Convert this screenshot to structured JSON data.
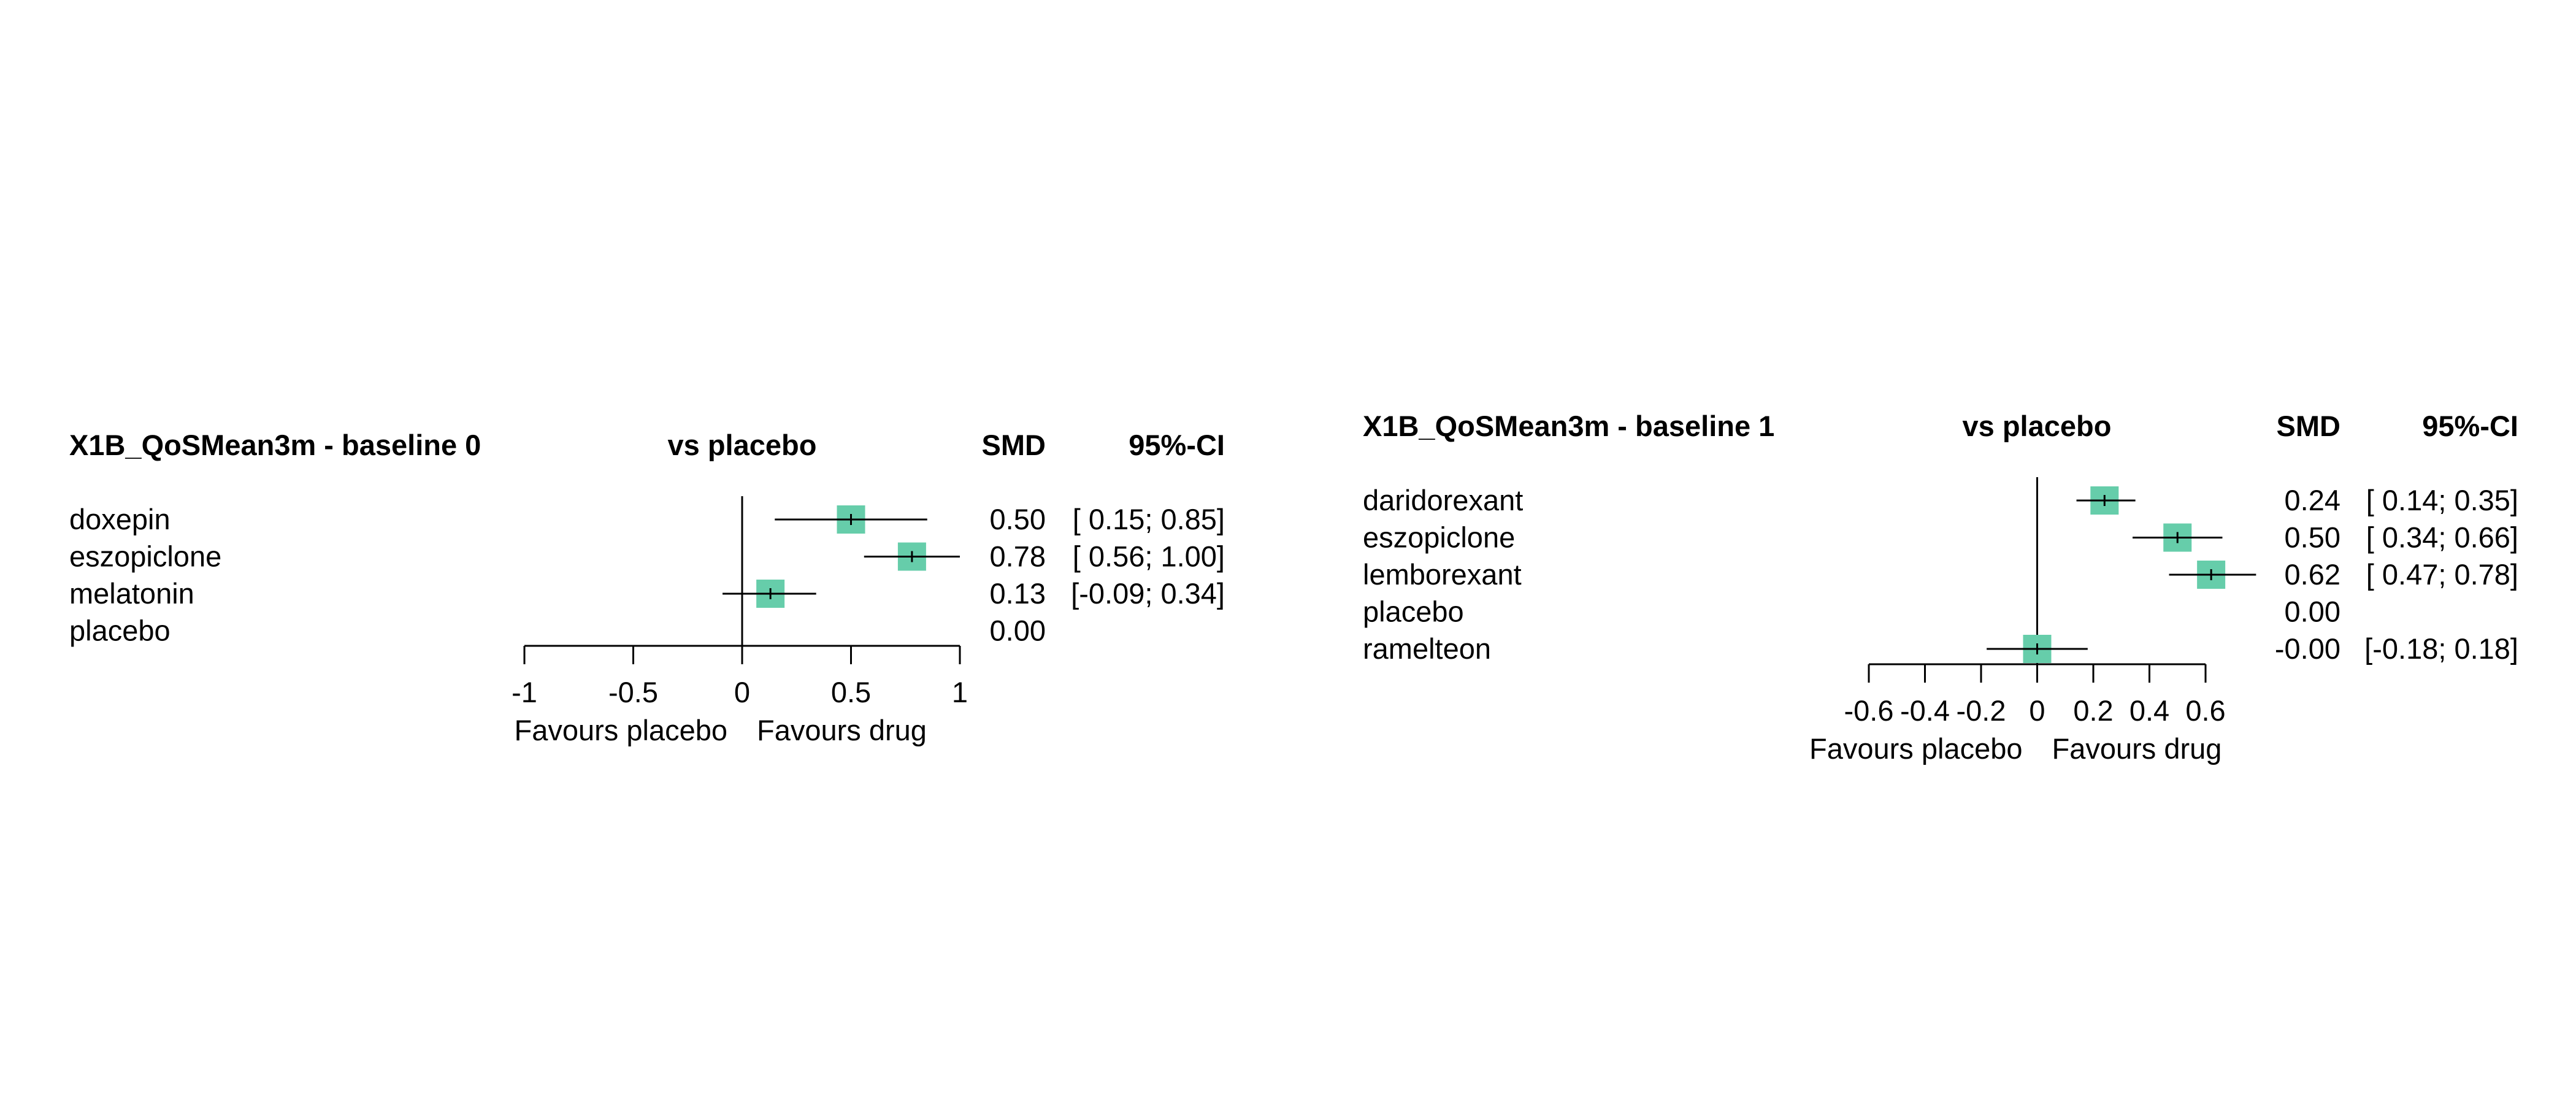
{
  "chart_data": [
    {
      "type": "forest",
      "title": "X1B_QoSMean3m - baseline 0",
      "comparison_label": "vs placebo",
      "estimate_label": "SMD",
      "ci_label": "95%-CI",
      "xlim": [
        -1,
        1
      ],
      "ticks": [
        -1,
        -0.5,
        0,
        0.5,
        1
      ],
      "tick_labels": [
        "-1",
        "-0.5",
        "0",
        "0.5",
        "1"
      ],
      "left_label": "Favours placebo",
      "right_label": "Favours drug",
      "marker_color": "#66cdaa",
      "rows": [
        {
          "treatment": "doxepin",
          "smd": 0.5,
          "lower": 0.15,
          "upper": 0.85,
          "smd_text": "0.50",
          "ci_text": "[ 0.15; 0.85]"
        },
        {
          "treatment": "eszopiclone",
          "smd": 0.78,
          "lower": 0.56,
          "upper": 1.0,
          "smd_text": "0.78",
          "ci_text": "[ 0.56; 1.00]"
        },
        {
          "treatment": "melatonin",
          "smd": 0.13,
          "lower": -0.09,
          "upper": 0.34,
          "smd_text": "0.13",
          "ci_text": "[-0.09; 0.34]"
        },
        {
          "treatment": "placebo",
          "smd": 0.0,
          "lower": null,
          "upper": null,
          "smd_text": "0.00",
          "ci_text": ""
        }
      ]
    },
    {
      "type": "forest",
      "title": "X1B_QoSMean3m - baseline 1",
      "comparison_label": "vs placebo",
      "estimate_label": "SMD",
      "ci_label": "95%-CI",
      "xlim": [
        -0.6,
        0.6
      ],
      "ticks": [
        -0.6,
        -0.4,
        -0.2,
        0,
        0.2,
        0.4,
        0.6
      ],
      "tick_labels": [
        "-0.6",
        "-0.4",
        "-0.2",
        "0",
        "0.2",
        "0.4",
        "0.6"
      ],
      "left_label": "Favours placebo",
      "right_label": "Favours drug",
      "marker_color": "#66cdaa",
      "rows": [
        {
          "treatment": "daridorexant",
          "smd": 0.24,
          "lower": 0.14,
          "upper": 0.35,
          "smd_text": "0.24",
          "ci_text": "[ 0.14; 0.35]"
        },
        {
          "treatment": "eszopiclone",
          "smd": 0.5,
          "lower": 0.34,
          "upper": 0.66,
          "smd_text": "0.50",
          "ci_text": "[ 0.34; 0.66]"
        },
        {
          "treatment": "lemborexant",
          "smd": 0.62,
          "lower": 0.47,
          "upper": 0.78,
          "smd_text": "0.62",
          "ci_text": "[ 0.47; 0.78]"
        },
        {
          "treatment": "placebo",
          "smd": 0.0,
          "lower": null,
          "upper": null,
          "smd_text": "0.00",
          "ci_text": ""
        },
        {
          "treatment": "ramelteon",
          "smd": -0.0,
          "lower": -0.18,
          "upper": 0.18,
          "smd_text": "-0.00",
          "ci_text": "[-0.18; 0.18]"
        }
      ]
    }
  ]
}
